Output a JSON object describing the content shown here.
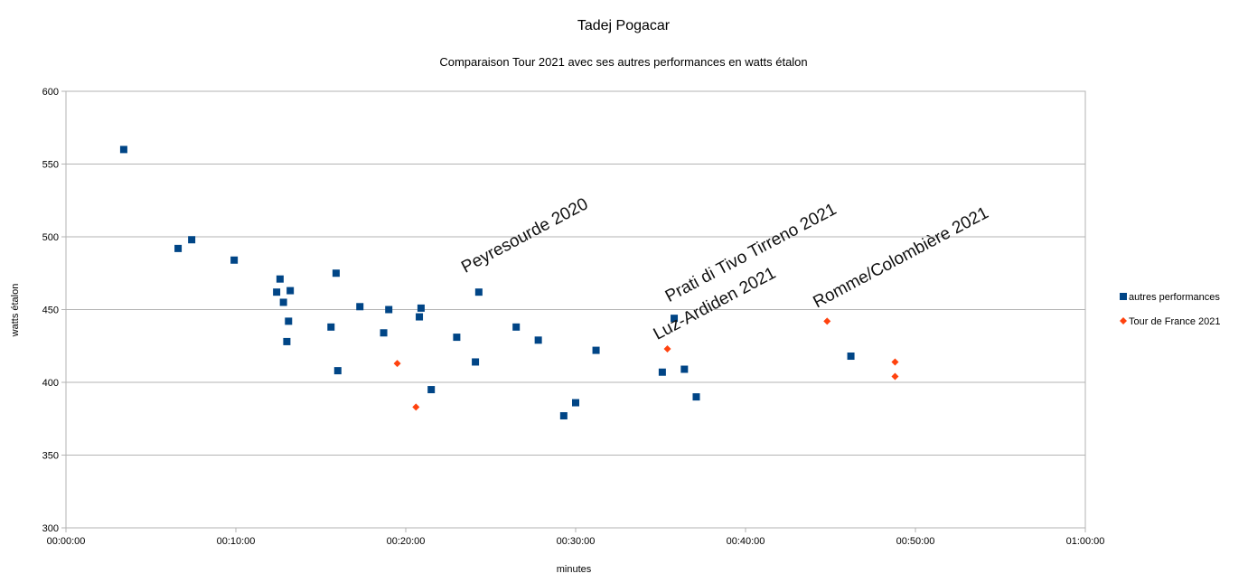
{
  "chart_data": {
    "type": "scatter",
    "title": "Tadej Pogacar",
    "subtitle": "Comparaison Tour 2021 avec ses autres performances en watts étalon",
    "xlabel": "minutes",
    "ylabel": "watts étalon",
    "xlim_minutes": [
      0,
      60
    ],
    "ylim": [
      300,
      600
    ],
    "x_ticks": [
      "00:00:00",
      "00:10:00",
      "00:20:00",
      "00:30:00",
      "00:40:00",
      "00:50:00",
      "01:00:00"
    ],
    "y_ticks": [
      "300",
      "350",
      "400",
      "450",
      "500",
      "550",
      "600"
    ],
    "grid": "horizontal",
    "legend_position": "right",
    "series": [
      {
        "name": "autres performances",
        "color": "#004586",
        "marker": "square",
        "points": [
          {
            "x": 3.4,
            "y": 560
          },
          {
            "x": 6.6,
            "y": 492
          },
          {
            "x": 7.4,
            "y": 498
          },
          {
            "x": 9.9,
            "y": 484
          },
          {
            "x": 12.4,
            "y": 462
          },
          {
            "x": 12.6,
            "y": 471
          },
          {
            "x": 12.8,
            "y": 455
          },
          {
            "x": 13.0,
            "y": 428
          },
          {
            "x": 13.1,
            "y": 442
          },
          {
            "x": 13.2,
            "y": 463
          },
          {
            "x": 15.6,
            "y": 438
          },
          {
            "x": 15.9,
            "y": 475
          },
          {
            "x": 16.0,
            "y": 408
          },
          {
            "x": 17.3,
            "y": 452
          },
          {
            "x": 18.7,
            "y": 434
          },
          {
            "x": 19.0,
            "y": 450
          },
          {
            "x": 20.8,
            "y": 445
          },
          {
            "x": 20.9,
            "y": 451
          },
          {
            "x": 21.5,
            "y": 395
          },
          {
            "x": 23.0,
            "y": 431
          },
          {
            "x": 24.1,
            "y": 414
          },
          {
            "x": 24.3,
            "y": 462
          },
          {
            "x": 26.5,
            "y": 438
          },
          {
            "x": 27.8,
            "y": 429
          },
          {
            "x": 29.3,
            "y": 377
          },
          {
            "x": 30.0,
            "y": 386
          },
          {
            "x": 31.2,
            "y": 422
          },
          {
            "x": 35.1,
            "y": 407
          },
          {
            "x": 35.8,
            "y": 444
          },
          {
            "x": 36.4,
            "y": 409
          },
          {
            "x": 37.1,
            "y": 390
          },
          {
            "x": 46.2,
            "y": 418
          }
        ]
      },
      {
        "name": "Tour de France 2021",
        "color": "#ff420e",
        "marker": "diamond",
        "points": [
          {
            "x": 19.5,
            "y": 413
          },
          {
            "x": 20.6,
            "y": 383
          },
          {
            "x": 35.4,
            "y": 423
          },
          {
            "x": 44.8,
            "y": 442
          },
          {
            "x": 48.8,
            "y": 414
          },
          {
            "x": 48.8,
            "y": 404
          }
        ]
      }
    ],
    "annotations": [
      {
        "text": "Peyresourde 2020",
        "x": 23.5,
        "y": 475
      },
      {
        "text": "Prati di Tivo Tirreno 2021",
        "x": 35.5,
        "y": 455
      },
      {
        "text": "Luz-Ardiden 2021",
        "x": 34.8,
        "y": 429
      },
      {
        "text": "Romme/Colombière 2021",
        "x": 44.2,
        "y": 451
      }
    ]
  }
}
